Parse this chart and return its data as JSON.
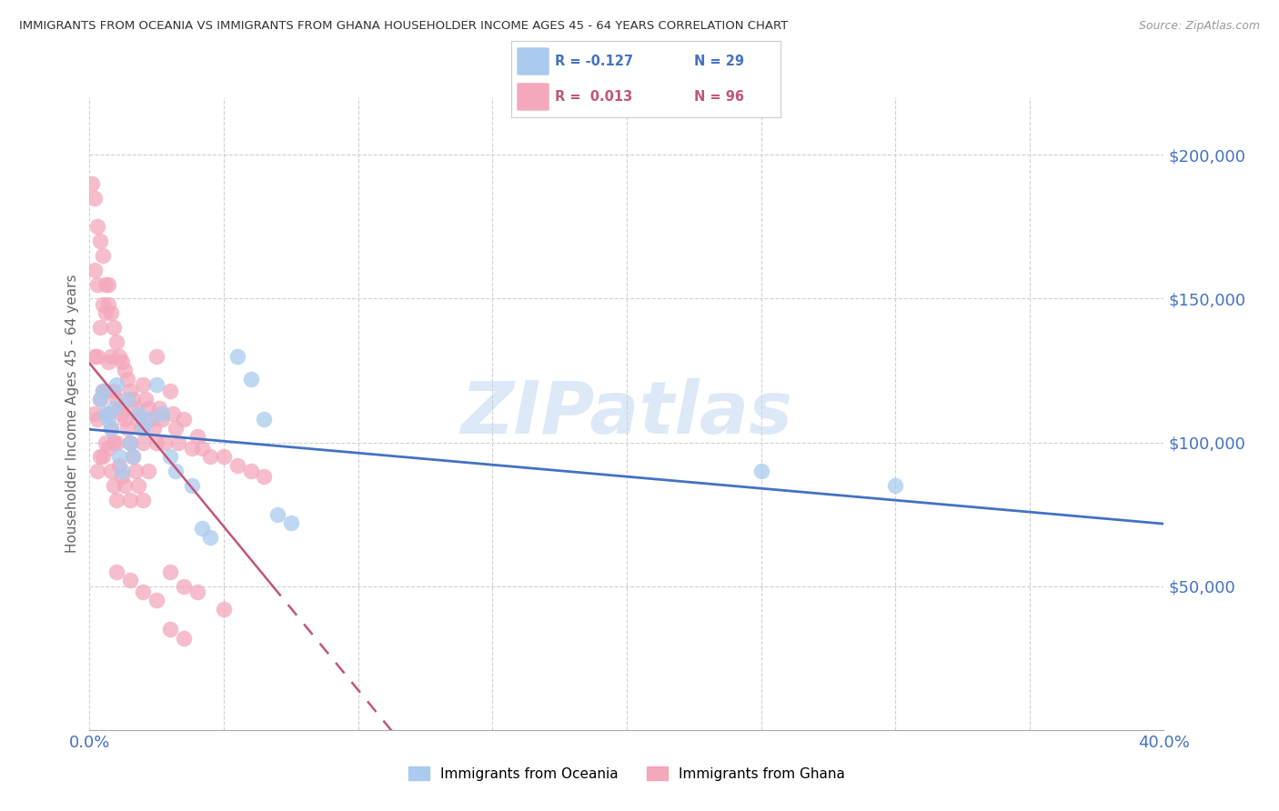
{
  "title": "IMMIGRANTS FROM OCEANIA VS IMMIGRANTS FROM GHANA HOUSEHOLDER INCOME AGES 45 - 64 YEARS CORRELATION CHART",
  "source": "Source: ZipAtlas.com",
  "ylabel": "Householder Income Ages 45 - 64 years",
  "watermark": "ZIPatlas",
  "legend_oceania": "Immigrants from Oceania",
  "legend_ghana": "Immigrants from Ghana",
  "yticks": [
    50000,
    100000,
    150000,
    200000
  ],
  "ytick_labels": [
    "$50,000",
    "$100,000",
    "$150,000",
    "$200,000"
  ],
  "xlim": [
    0.0,
    0.4
  ],
  "ylim": [
    0,
    220000
  ],
  "color_oceania": "#aacbee",
  "color_ghana": "#f4a8bc",
  "line_color_oceania": "#4472c4",
  "line_color_ghana": "#c0567a",
  "background_color": "#ffffff",
  "title_color": "#333333",
  "axis_label_color": "#4472c4",
  "oceania_x": [
    0.004,
    0.005,
    0.006,
    0.007,
    0.008,
    0.009,
    0.01,
    0.011,
    0.012,
    0.014,
    0.015,
    0.016,
    0.018,
    0.02,
    0.022,
    0.025,
    0.027,
    0.03,
    0.032,
    0.038,
    0.042,
    0.045,
    0.055,
    0.06,
    0.065,
    0.07,
    0.075,
    0.25,
    0.3
  ],
  "oceania_y": [
    115000,
    118000,
    110000,
    108000,
    105000,
    112000,
    120000,
    95000,
    90000,
    115000,
    100000,
    95000,
    110000,
    105000,
    108000,
    120000,
    110000,
    95000,
    90000,
    85000,
    70000,
    67000,
    130000,
    122000,
    108000,
    75000,
    72000,
    90000,
    85000
  ],
  "ghana_x": [
    0.001,
    0.002,
    0.002,
    0.002,
    0.002,
    0.003,
    0.003,
    0.003,
    0.003,
    0.003,
    0.004,
    0.004,
    0.004,
    0.004,
    0.005,
    0.005,
    0.005,
    0.005,
    0.006,
    0.006,
    0.006,
    0.006,
    0.007,
    0.007,
    0.007,
    0.007,
    0.007,
    0.008,
    0.008,
    0.008,
    0.008,
    0.009,
    0.009,
    0.009,
    0.009,
    0.01,
    0.01,
    0.01,
    0.01,
    0.011,
    0.011,
    0.011,
    0.012,
    0.012,
    0.012,
    0.013,
    0.013,
    0.013,
    0.014,
    0.014,
    0.015,
    0.015,
    0.015,
    0.016,
    0.016,
    0.017,
    0.017,
    0.018,
    0.018,
    0.019,
    0.02,
    0.02,
    0.02,
    0.021,
    0.022,
    0.022,
    0.023,
    0.024,
    0.025,
    0.025,
    0.026,
    0.027,
    0.028,
    0.03,
    0.031,
    0.032,
    0.033,
    0.035,
    0.038,
    0.04,
    0.042,
    0.045,
    0.05,
    0.055,
    0.06,
    0.065,
    0.01,
    0.015,
    0.02,
    0.025,
    0.03,
    0.03,
    0.035,
    0.035,
    0.04,
    0.05
  ],
  "ghana_y": [
    190000,
    185000,
    160000,
    130000,
    110000,
    175000,
    155000,
    130000,
    108000,
    90000,
    170000,
    140000,
    115000,
    95000,
    165000,
    148000,
    118000,
    95000,
    155000,
    145000,
    118000,
    100000,
    155000,
    148000,
    128000,
    110000,
    98000,
    145000,
    130000,
    105000,
    90000,
    140000,
    118000,
    100000,
    85000,
    135000,
    115000,
    100000,
    80000,
    130000,
    112000,
    92000,
    128000,
    110000,
    88000,
    125000,
    108000,
    85000,
    122000,
    105000,
    118000,
    100000,
    80000,
    115000,
    95000,
    112000,
    90000,
    108000,
    85000,
    105000,
    120000,
    100000,
    80000,
    115000,
    112000,
    90000,
    108000,
    105000,
    130000,
    100000,
    112000,
    108000,
    100000,
    118000,
    110000,
    105000,
    100000,
    108000,
    98000,
    102000,
    98000,
    95000,
    95000,
    92000,
    90000,
    88000,
    55000,
    52000,
    48000,
    45000,
    55000,
    35000,
    50000,
    32000,
    48000,
    42000
  ]
}
